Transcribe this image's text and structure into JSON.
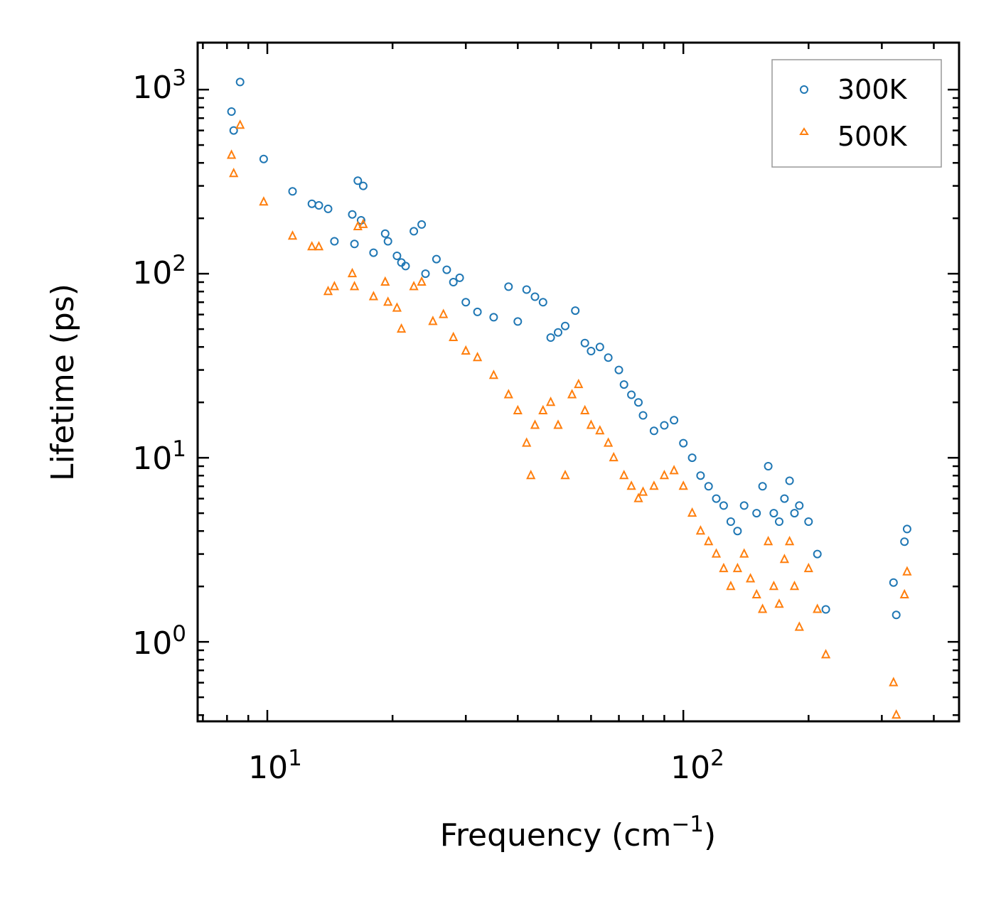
{
  "chart_data": {
    "type": "scatter",
    "xscale": "log",
    "yscale": "log",
    "xlim": [
      6.8,
      460
    ],
    "ylim": [
      0.37,
      1800
    ],
    "xlabel": "Frequency (cm",
    "xlabel_sup": "−1",
    "xlabel_end": ")",
    "ylabel": "Lifetime (ps)",
    "xticks": [
      {
        "base": "10",
        "exp": "1",
        "value": 10
      },
      {
        "base": "10",
        "exp": "2",
        "value": 100
      }
    ],
    "yticks": [
      {
        "base": "10",
        "exp": "0",
        "value": 1
      },
      {
        "base": "10",
        "exp": "1",
        "value": 10
      },
      {
        "base": "10",
        "exp": "2",
        "value": 100
      },
      {
        "base": "10",
        "exp": "3",
        "value": 1000
      }
    ],
    "legend_position": "top-right",
    "series": [
      {
        "name": "300K",
        "color": "#1f77b4",
        "marker": "circle",
        "points": [
          [
            8.2,
            760
          ],
          [
            8.3,
            600
          ],
          [
            8.6,
            1100
          ],
          [
            9.8,
            420
          ],
          [
            11.5,
            280
          ],
          [
            12.8,
            240
          ],
          [
            13.3,
            235
          ],
          [
            14.0,
            225
          ],
          [
            14.5,
            150
          ],
          [
            16.0,
            210
          ],
          [
            16.2,
            145
          ],
          [
            16.5,
            320
          ],
          [
            17.0,
            300
          ],
          [
            16.8,
            195
          ],
          [
            18.0,
            130
          ],
          [
            19.2,
            165
          ],
          [
            19.5,
            150
          ],
          [
            20.5,
            125
          ],
          [
            21.0,
            115
          ],
          [
            21.5,
            110
          ],
          [
            22.5,
            170
          ],
          [
            23.5,
            185
          ],
          [
            24.0,
            100
          ],
          [
            25.5,
            120
          ],
          [
            27.0,
            105
          ],
          [
            28.0,
            90
          ],
          [
            29.0,
            95
          ],
          [
            30.0,
            70
          ],
          [
            32.0,
            62
          ],
          [
            35.0,
            58
          ],
          [
            38.0,
            85
          ],
          [
            40.0,
            55
          ],
          [
            42.0,
            82
          ],
          [
            44.0,
            75
          ],
          [
            46.0,
            70
          ],
          [
            48.0,
            45
          ],
          [
            50.0,
            48
          ],
          [
            52.0,
            52
          ],
          [
            55.0,
            63
          ],
          [
            58.0,
            42
          ],
          [
            60.0,
            38
          ],
          [
            63.0,
            40
          ],
          [
            66.0,
            35
          ],
          [
            70.0,
            30
          ],
          [
            72.0,
            25
          ],
          [
            75.0,
            22
          ],
          [
            78.0,
            20
          ],
          [
            80.0,
            17
          ],
          [
            85.0,
            14
          ],
          [
            90.0,
            15
          ],
          [
            95.0,
            16
          ],
          [
            100.0,
            12
          ],
          [
            105.0,
            10
          ],
          [
            110.0,
            8
          ],
          [
            115.0,
            7
          ],
          [
            120.0,
            6
          ],
          [
            125.0,
            5.5
          ],
          [
            130.0,
            4.5
          ],
          [
            135.0,
            4
          ],
          [
            140.0,
            5.5
          ],
          [
            150.0,
            5
          ],
          [
            155.0,
            7
          ],
          [
            160.0,
            9
          ],
          [
            165.0,
            5
          ],
          [
            170.0,
            4.5
          ],
          [
            175.0,
            6
          ],
          [
            180.0,
            7.5
          ],
          [
            185.0,
            5
          ],
          [
            190.0,
            5.5
          ],
          [
            200.0,
            4.5
          ],
          [
            210.0,
            3
          ],
          [
            220.0,
            1.5
          ],
          [
            320.0,
            2.1
          ],
          [
            325.0,
            1.4
          ],
          [
            340.0,
            3.5
          ],
          [
            345.0,
            4.1
          ]
        ]
      },
      {
        "name": "500K",
        "color": "#ff7f0e",
        "marker": "triangle",
        "points": [
          [
            8.2,
            440
          ],
          [
            8.3,
            350
          ],
          [
            8.6,
            640
          ],
          [
            9.8,
            245
          ],
          [
            11.5,
            160
          ],
          [
            12.8,
            140
          ],
          [
            13.3,
            140
          ],
          [
            14.0,
            80
          ],
          [
            14.5,
            85
          ],
          [
            16.0,
            100
          ],
          [
            16.2,
            85
          ],
          [
            16.5,
            180
          ],
          [
            17.0,
            185
          ],
          [
            18.0,
            75
          ],
          [
            19.2,
            90
          ],
          [
            19.5,
            70
          ],
          [
            20.5,
            65
          ],
          [
            21.0,
            50
          ],
          [
            22.5,
            85
          ],
          [
            23.5,
            90
          ],
          [
            25.0,
            55
          ],
          [
            26.5,
            60
          ],
          [
            28.0,
            45
          ],
          [
            30.0,
            38
          ],
          [
            32.0,
            35
          ],
          [
            35.0,
            28
          ],
          [
            38.0,
            22
          ],
          [
            40.0,
            18
          ],
          [
            42.0,
            12
          ],
          [
            43.0,
            8
          ],
          [
            44.0,
            15
          ],
          [
            46.0,
            18
          ],
          [
            48.0,
            20
          ],
          [
            50.0,
            15
          ],
          [
            52.0,
            8
          ],
          [
            54.0,
            22
          ],
          [
            56.0,
            25
          ],
          [
            58.0,
            18
          ],
          [
            60.0,
            15
          ],
          [
            63.0,
            14
          ],
          [
            66.0,
            12
          ],
          [
            68.0,
            10
          ],
          [
            72.0,
            8
          ],
          [
            75.0,
            7
          ],
          [
            78.0,
            6
          ],
          [
            80.0,
            6.5
          ],
          [
            85.0,
            7
          ],
          [
            90.0,
            8
          ],
          [
            95.0,
            8.5
          ],
          [
            100.0,
            7
          ],
          [
            105.0,
            5
          ],
          [
            110.0,
            4
          ],
          [
            115.0,
            3.5
          ],
          [
            120.0,
            3
          ],
          [
            125.0,
            2.5
          ],
          [
            130.0,
            2
          ],
          [
            135.0,
            2.5
          ],
          [
            140.0,
            3
          ],
          [
            145.0,
            2.2
          ],
          [
            150.0,
            1.8
          ],
          [
            155.0,
            1.5
          ],
          [
            160.0,
            3.5
          ],
          [
            165.0,
            2
          ],
          [
            170.0,
            1.6
          ],
          [
            175.0,
            2.8
          ],
          [
            180.0,
            3.5
          ],
          [
            185.0,
            2
          ],
          [
            190.0,
            1.2
          ],
          [
            200.0,
            2.5
          ],
          [
            210.0,
            1.5
          ],
          [
            220.0,
            0.85
          ],
          [
            320.0,
            0.6
          ],
          [
            325.0,
            0.4
          ],
          [
            340.0,
            1.8
          ],
          [
            345.0,
            2.4
          ]
        ]
      }
    ]
  }
}
